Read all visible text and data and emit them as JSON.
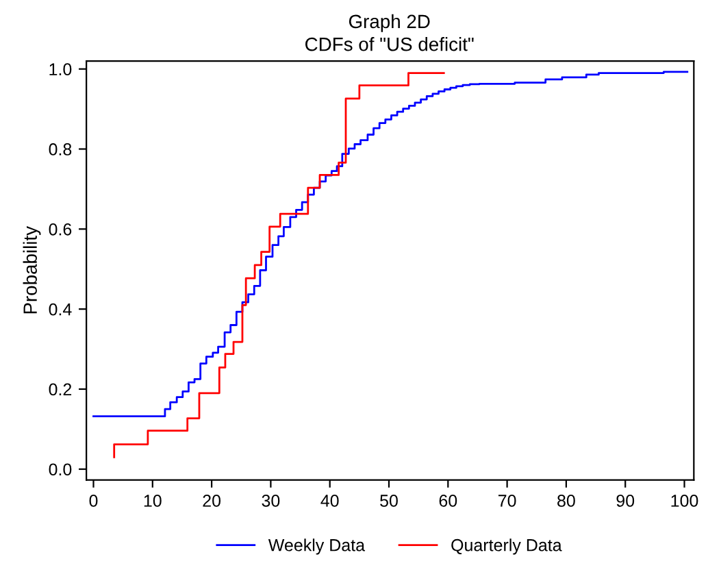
{
  "chart_data": {
    "type": "step",
    "title": "Graph 2D",
    "subtitle": "CDFs of \"US deficit\"",
    "ylabel": "Probability",
    "xlim": [
      -1.2,
      101.6
    ],
    "ylim": [
      -0.027,
      1.02
    ],
    "xticks": [
      0,
      10,
      20,
      30,
      40,
      50,
      60,
      70,
      80,
      90,
      100
    ],
    "yticks": [
      {
        "value": 0,
        "label": "0.0"
      },
      {
        "value": 0.2,
        "label": "0.2"
      },
      {
        "value": 0.4,
        "label": "0.4"
      },
      {
        "value": 0.6,
        "label": "0.6"
      },
      {
        "value": 0.8,
        "label": "0.8"
      },
      {
        "value": 1.0,
        "label": "1.0"
      }
    ],
    "grid": false,
    "legend": "bottom",
    "line_style": "solid",
    "series": [
      {
        "name": "Weekly Data",
        "color": "#0000ff",
        "x": [
          0,
          12.1,
          13.0,
          14.1,
          15.1,
          16.1,
          17.1,
          18.1,
          19.1,
          20.2,
          21.1,
          22.2,
          23.2,
          24.2,
          25.2,
          26.2,
          27.2,
          28.2,
          29.2,
          30.3,
          31.3,
          32.2,
          33.3,
          34.3,
          35.3,
          36.3,
          37.3,
          38.3,
          39.3,
          40.3,
          41.2,
          42.1,
          43.2,
          44.2,
          45.2,
          46.4,
          47.4,
          48.4,
          49.4,
          50.4,
          51.4,
          52.4,
          53.4,
          54.4,
          55.4,
          56.4,
          57.4,
          58.4,
          59.4,
          60.4,
          61.4,
          62.5,
          63.7,
          65.3,
          71.3,
          76.5,
          79.3,
          83.4,
          85.5,
          96.5,
          100.5
        ],
        "values": [
          0.132,
          0.15,
          0.167,
          0.18,
          0.194,
          0.217,
          0.225,
          0.264,
          0.281,
          0.291,
          0.306,
          0.342,
          0.36,
          0.393,
          0.417,
          0.437,
          0.458,
          0.497,
          0.531,
          0.56,
          0.582,
          0.605,
          0.63,
          0.648,
          0.667,
          0.686,
          0.703,
          0.719,
          0.734,
          0.745,
          0.757,
          0.788,
          0.801,
          0.812,
          0.822,
          0.836,
          0.852,
          0.865,
          0.874,
          0.884,
          0.893,
          0.901,
          0.908,
          0.916,
          0.924,
          0.932,
          0.938,
          0.944,
          0.949,
          0.953,
          0.957,
          0.96,
          0.962,
          0.963,
          0.966,
          0.974,
          0.979,
          0.986,
          0.99,
          0.993,
          0.993
        ]
      },
      {
        "name": "Quarterly Data",
        "color": "#ff0000",
        "x": [
          3.5,
          3.5,
          9.2,
          15.9,
          17.9,
          21.3,
          22.3,
          23.7,
          25.2,
          25.8,
          27.3,
          28.4,
          29.8,
          31.6,
          36.3,
          38.3,
          41.5,
          42.7,
          45.0,
          53.3,
          59.3
        ],
        "values": [
          0.03,
          0.062,
          0.096,
          0.127,
          0.19,
          0.254,
          0.288,
          0.318,
          0.41,
          0.477,
          0.51,
          0.543,
          0.606,
          0.638,
          0.703,
          0.735,
          0.766,
          0.926,
          0.959,
          0.99,
          0.99
        ]
      }
    ]
  }
}
